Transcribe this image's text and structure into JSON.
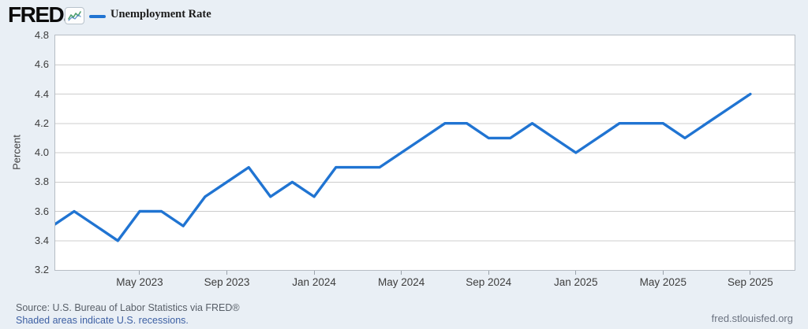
{
  "brand": {
    "logo_text": "FRED",
    "registered_mark": "®"
  },
  "legend": {
    "label": "Unemployment Rate"
  },
  "footer": {
    "source": "Source: U.S. Bureau of Labor Statistics via FRED®",
    "recession_note": "Shaded areas indicate U.S. recessions.",
    "site": "fred.stlouisfed.org"
  },
  "colors": {
    "line": "#2074d2",
    "grid": "#cccccc",
    "background": "#e9eff5",
    "plot_background": "#ffffff",
    "link": "#3c5fa3",
    "logo_spark_green": "#4ea06e",
    "logo_spark_blue": "#3f7ac0"
  },
  "chart_data": {
    "type": "line",
    "title": "Unemployment Rate",
    "ylabel": "Percent",
    "xlabel": "",
    "ylim": [
      3.2,
      4.8
    ],
    "y_tick_step": 0.2,
    "y_ticks": [
      4.8,
      4.6,
      4.4,
      4.2,
      4.0,
      3.8,
      3.6,
      3.4,
      3.2
    ],
    "grid": true,
    "legend_position": "top-left",
    "x": [
      "Jan 2023",
      "Feb 2023",
      "Mar 2023",
      "Apr 2023",
      "May 2023",
      "Jun 2023",
      "Jul 2023",
      "Aug 2023",
      "Sep 2023",
      "Oct 2023",
      "Nov 2023",
      "Dec 2023",
      "Jan 2024",
      "Feb 2024",
      "Mar 2024",
      "Apr 2024",
      "May 2024",
      "Jun 2024",
      "Jul 2024",
      "Aug 2024",
      "Sep 2024",
      "Oct 2024",
      "Nov 2024",
      "Dec 2024",
      "Jan 2025",
      "Feb 2025",
      "Mar 2025",
      "Apr 2025",
      "May 2025",
      "Jun 2025",
      "Jul 2025",
      "Aug 2025",
      "Sep 2025"
    ],
    "values": [
      3.5,
      3.6,
      3.5,
      3.4,
      3.6,
      3.6,
      3.5,
      3.7,
      3.8,
      3.9,
      3.7,
      3.8,
      3.7,
      3.9,
      3.9,
      3.9,
      4.0,
      4.1,
      4.2,
      4.2,
      4.1,
      4.1,
      4.2,
      4.1,
      4.0,
      4.1,
      4.2,
      4.2,
      4.2,
      4.1,
      4.2,
      4.3,
      4.4
    ],
    "x_ticks": [
      {
        "label": "May 2023",
        "month": 4
      },
      {
        "label": "Sep 2023",
        "month": 8
      },
      {
        "label": "Jan 2024",
        "month": 12
      },
      {
        "label": "May 2024",
        "month": 16
      },
      {
        "label": "Sep 2024",
        "month": 20
      },
      {
        "label": "Jan 2025",
        "month": 24
      },
      {
        "label": "May 2025",
        "month": 28
      },
      {
        "label": "Sep 2025",
        "month": 32
      }
    ]
  }
}
